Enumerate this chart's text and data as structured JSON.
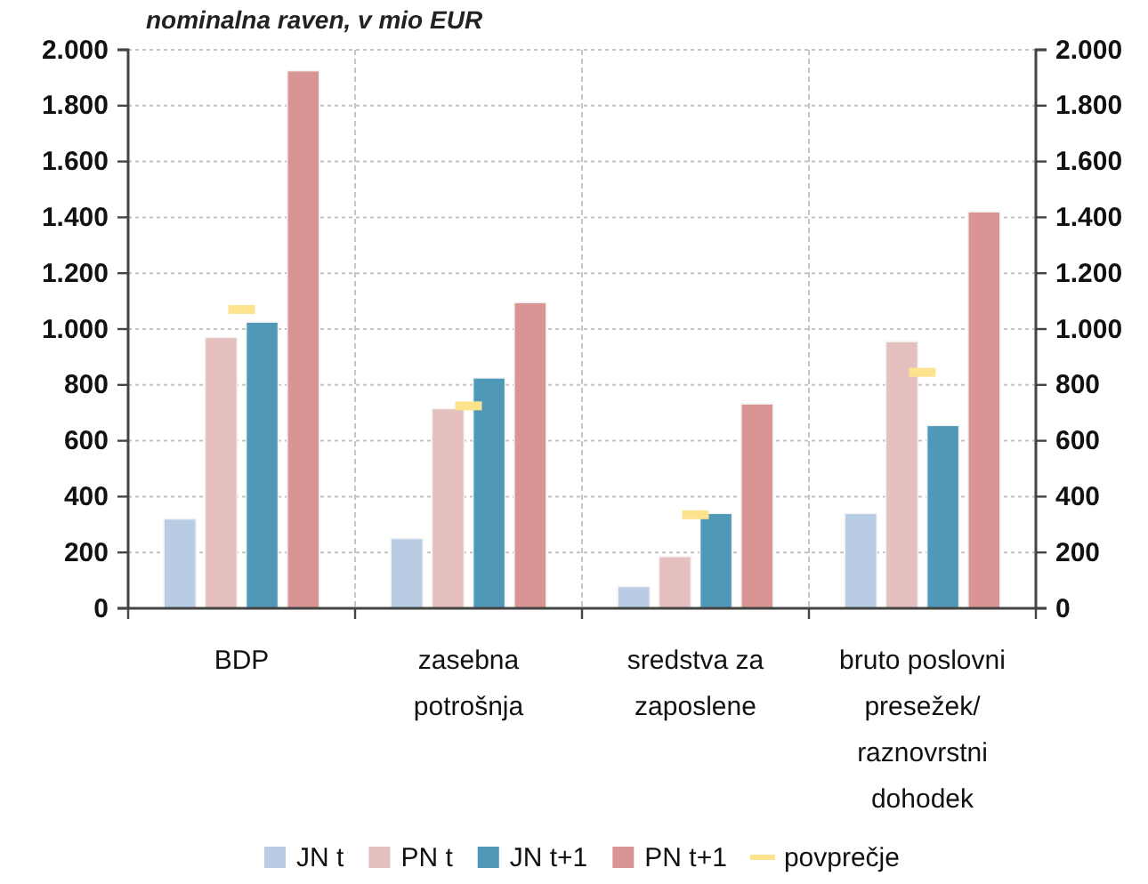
{
  "chart_data": {
    "type": "bar",
    "title": "nominalna raven, v mio EUR",
    "categories": [
      "BDP",
      "zasebna potrošnja",
      "sredstva za zaposlene",
      "bruto poslovni presežek/ raznovrstni dohodek"
    ],
    "series": [
      {
        "name": "JN t",
        "color": "#b8cce4",
        "values": [
          320,
          250,
          78,
          340
        ]
      },
      {
        "name": "PN t",
        "color": "#e6bfbf",
        "values": [
          970,
          715,
          185,
          955
        ]
      },
      {
        "name": "JN t+1",
        "color": "#4f98b8",
        "values": [
          1025,
          825,
          340,
          655
        ]
      },
      {
        "name": "PN t+1",
        "color": "#d99594",
        "values": [
          1925,
          1095,
          732,
          1420
        ]
      },
      {
        "name": "povprečje",
        "type": "scatter",
        "color": "#fde38e",
        "x": [
          "BDP",
          "zasebna potrošnja",
          "sredstva za zaposlene",
          "bruto poslovni presežek/ raznovrstni dohodek"
        ],
        "values": [
          1070,
          725,
          335,
          845
        ]
      }
    ],
    "ylim": [
      0,
      2000
    ],
    "yticks": [
      0,
      200,
      400,
      600,
      800,
      {
        "value": 1000,
        "label": "1.000"
      },
      {
        "value": 1200,
        "label": "1.200"
      },
      {
        "value": 1400,
        "label": "1.400"
      },
      {
        "value": 1600,
        "label": "1.600"
      },
      {
        "value": 1800,
        "label": "1.800"
      },
      {
        "value": 2000,
        "label": "2.000"
      }
    ],
    "y2lim": [
      0,
      2000
    ],
    "y2ticks": [
      0,
      200,
      400,
      600,
      800,
      {
        "value": 1000,
        "label": "1.000"
      },
      {
        "value": 1200,
        "label": "1.200"
      },
      {
        "value": 1400,
        "label": "1.400"
      },
      {
        "value": 1600,
        "label": "1.600"
      },
      {
        "value": 1800,
        "label": "1.800"
      },
      {
        "value": 2000,
        "label": "2.000"
      }
    ],
    "grid": true,
    "legend": "bottom"
  }
}
